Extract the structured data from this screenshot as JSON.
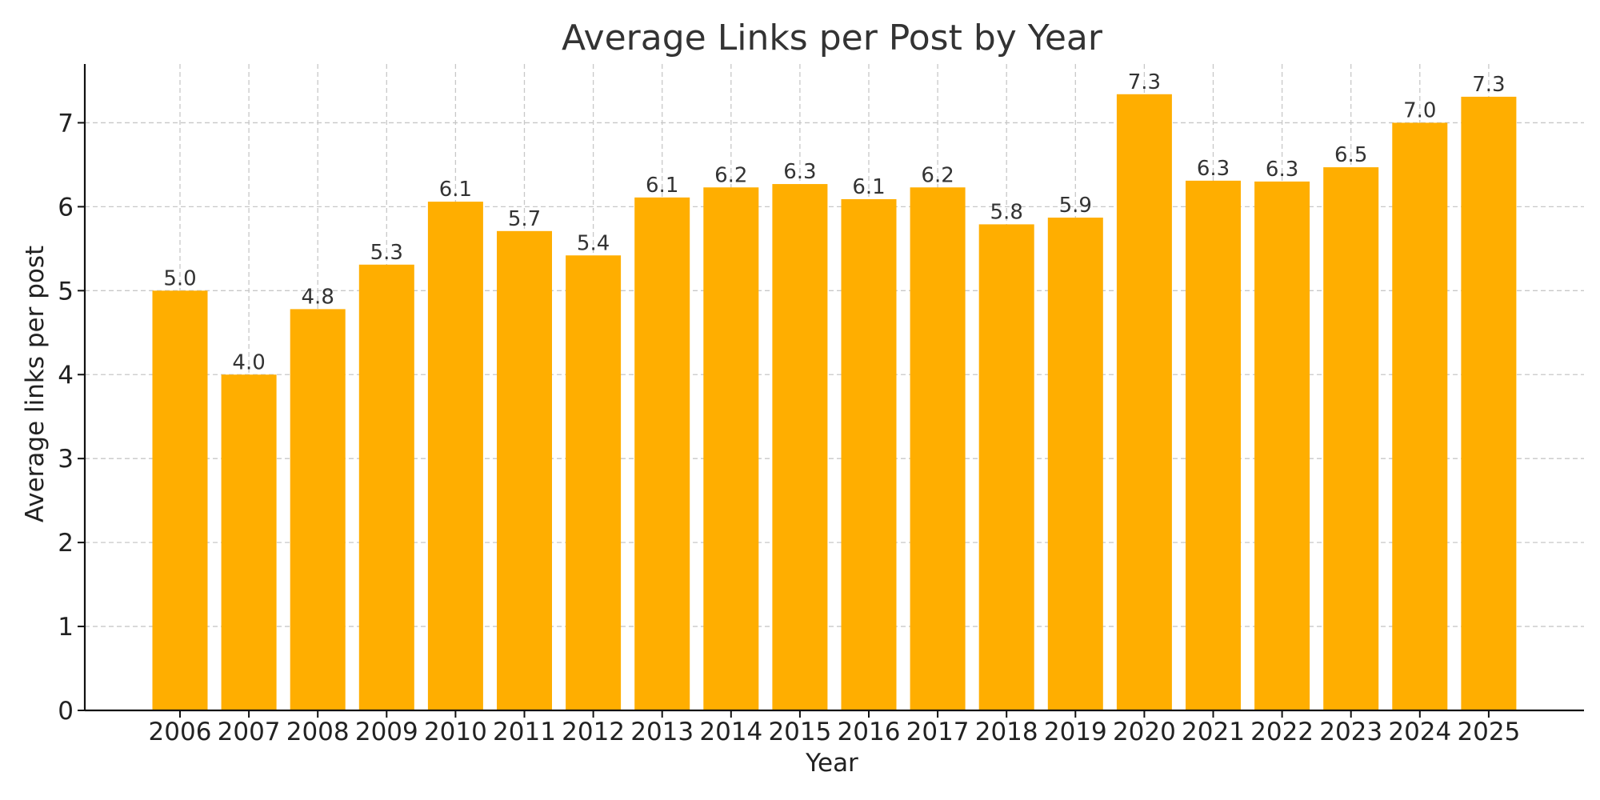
{
  "chart_data": {
    "type": "bar",
    "title": "Average Links per Post by Year",
    "xlabel": "Year",
    "ylabel": "Average links per post",
    "categories": [
      "2006",
      "2007",
      "2008",
      "2009",
      "2010",
      "2011",
      "2012",
      "2013",
      "2014",
      "2015",
      "2016",
      "2017",
      "2018",
      "2019",
      "2020",
      "2021",
      "2022",
      "2023",
      "2024",
      "2025"
    ],
    "values": [
      5.0,
      4.0,
      4.78,
      5.31,
      6.06,
      5.71,
      5.42,
      6.11,
      6.23,
      6.27,
      6.09,
      6.23,
      5.79,
      5.87,
      7.34,
      6.31,
      6.3,
      6.47,
      7.0,
      7.31
    ],
    "data_labels": [
      "5.0",
      "4.0",
      "4.8",
      "5.3",
      "6.1",
      "5.7",
      "5.4",
      "6.1",
      "6.2",
      "6.3",
      "6.1",
      "6.2",
      "5.8",
      "5.9",
      "7.3",
      "6.3",
      "6.3",
      "6.5",
      "7.0",
      "7.3"
    ],
    "yticks": [
      "0",
      "1",
      "2",
      "3",
      "4",
      "5",
      "6",
      "7"
    ],
    "ylim": [
      0,
      7.7
    ],
    "grid": true,
    "bar_color": "#FFAE00"
  }
}
